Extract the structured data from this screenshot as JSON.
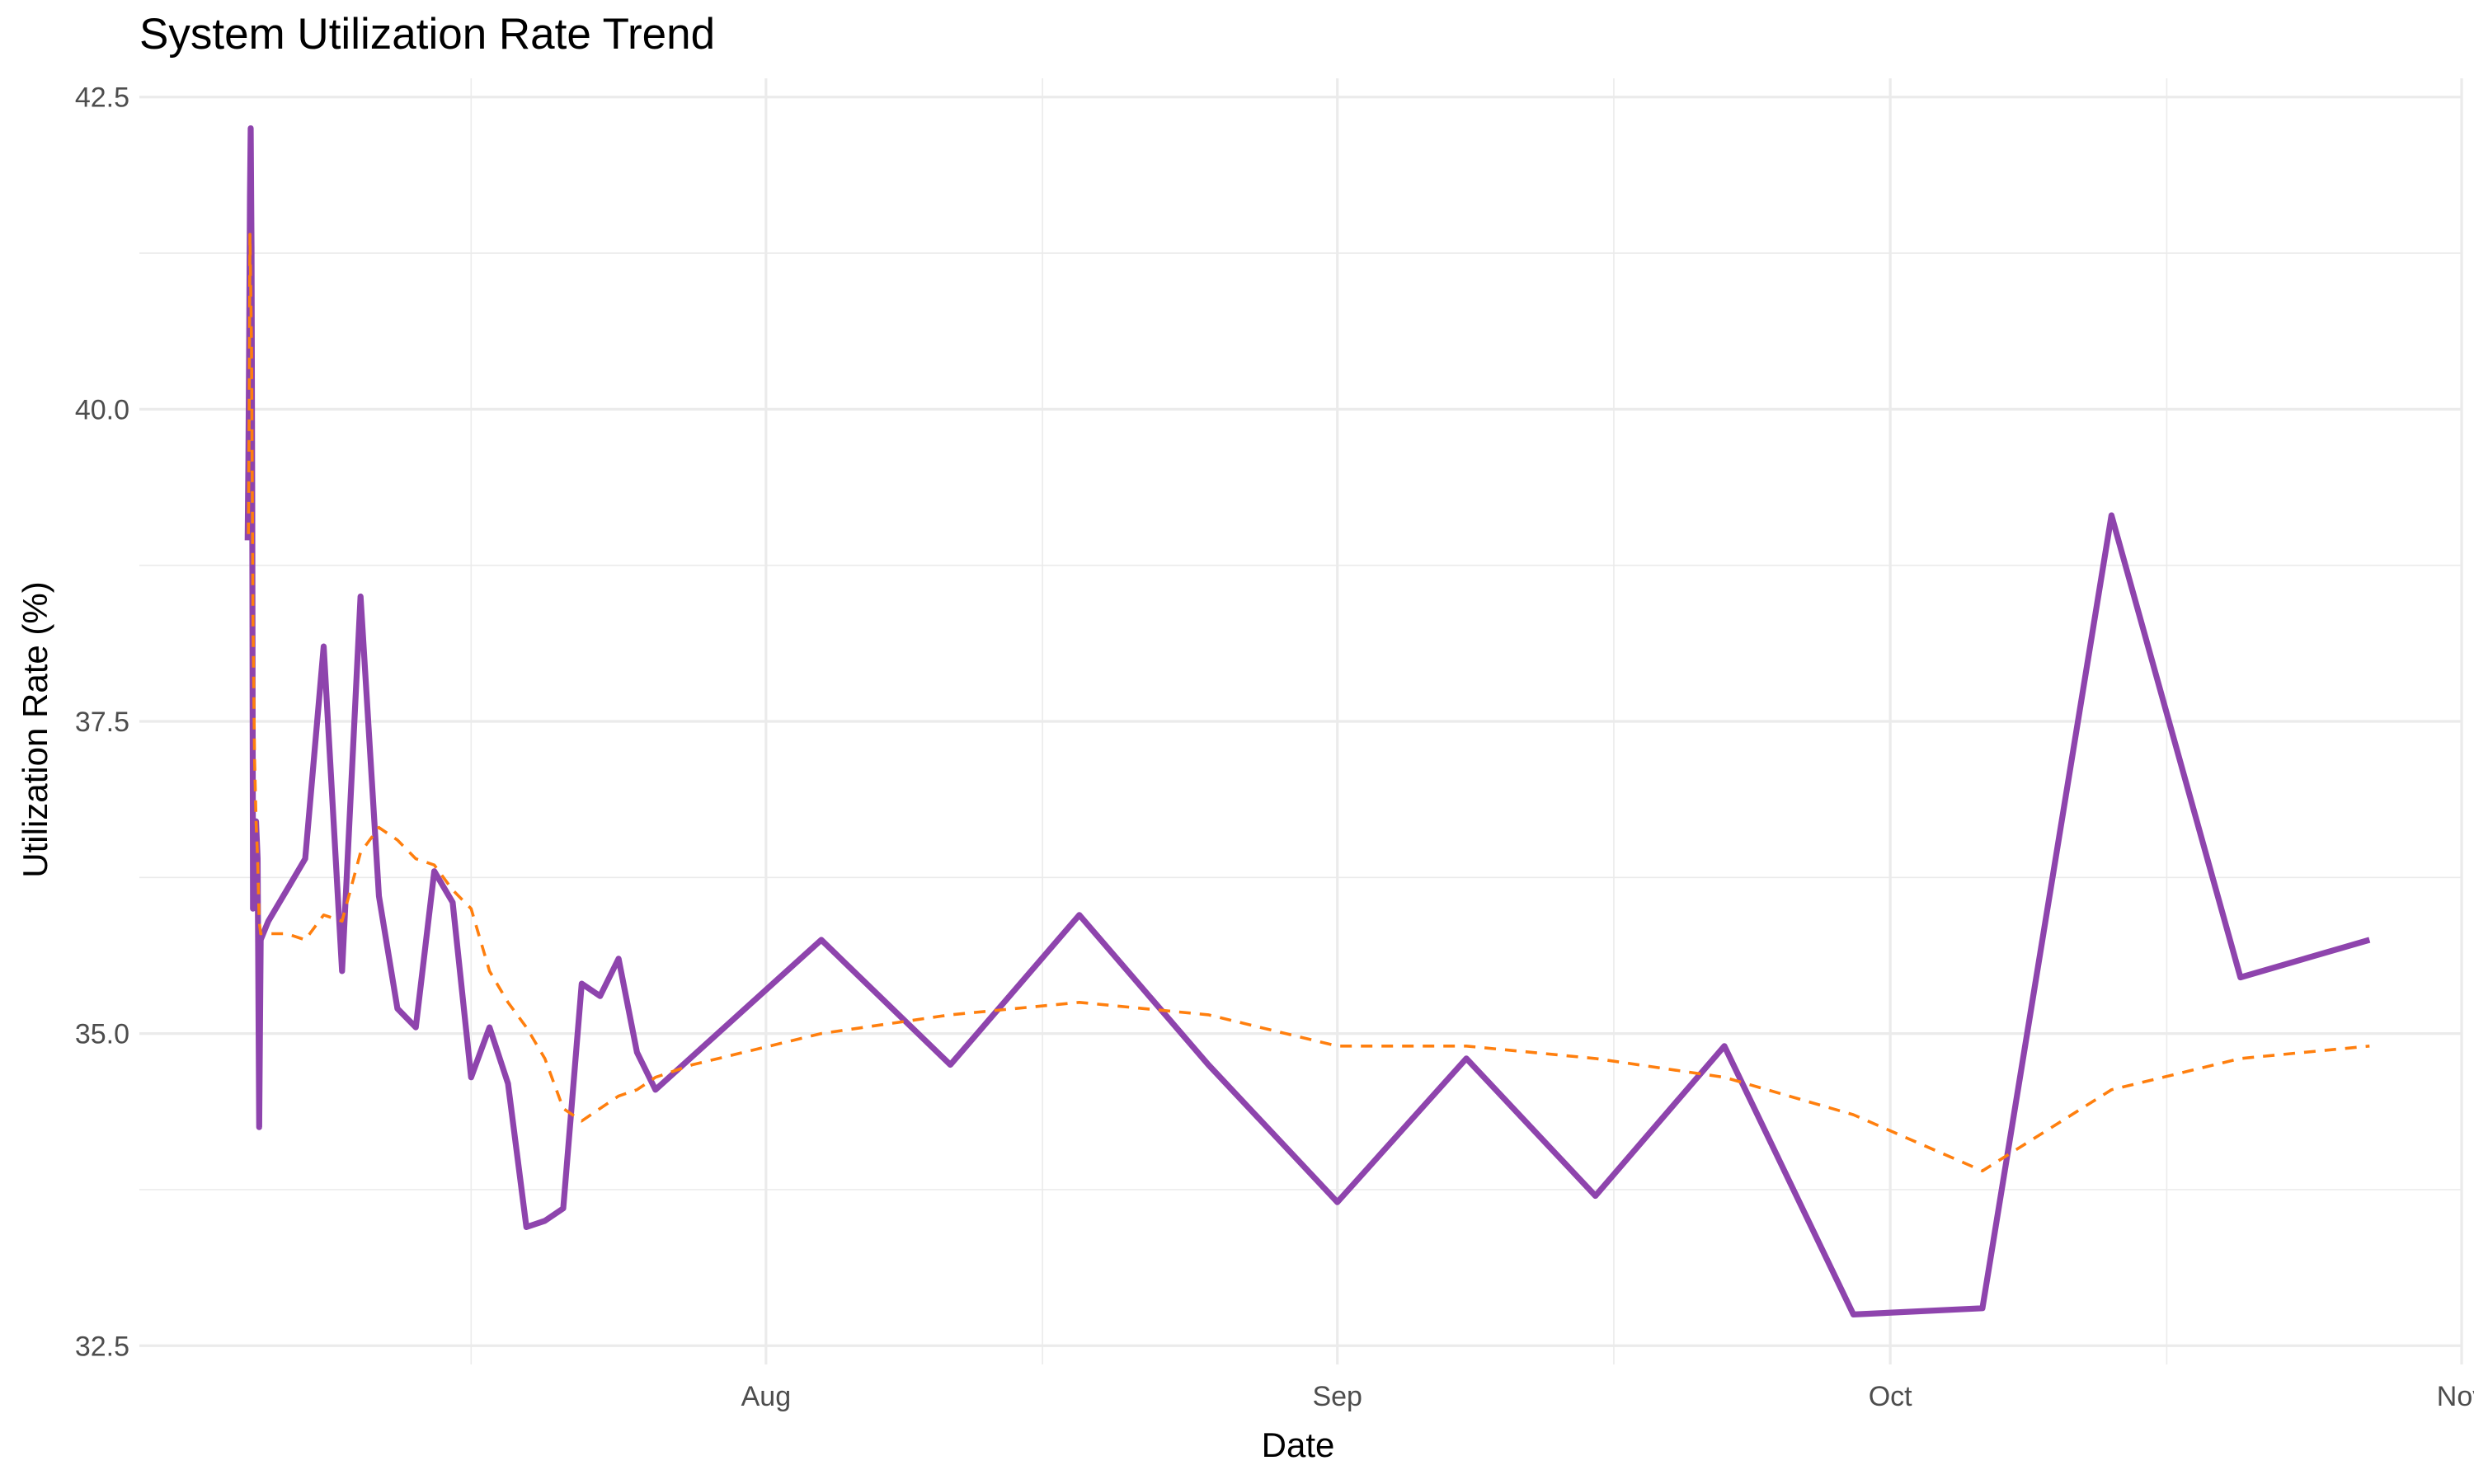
{
  "chart_data": {
    "type": "line",
    "title": "System Utilization Rate Trend",
    "xlabel": "Date",
    "ylabel": "Utilization Rate (%)",
    "x_type": "date",
    "xlim": [
      "2024-06-28",
      "2024-11-01"
    ],
    "ylim": [
      32.35,
      42.65
    ],
    "x_ticks": [
      {
        "date": "2024-08-01",
        "label": "Aug"
      },
      {
        "date": "2024-09-01",
        "label": "Sep"
      },
      {
        "date": "2024-10-01",
        "label": "Oct"
      },
      {
        "date": "2024-11-01",
        "label": "Nov"
      }
    ],
    "x_minor_ticks": [
      "2024-07-16",
      "2024-08-16",
      "2024-08-16",
      "2024-09-16",
      "2024-10-16"
    ],
    "y_ticks": [
      32.5,
      35.0,
      37.5,
      40.0,
      42.5
    ],
    "y_tick_labels": [
      "32.5",
      "35.0",
      "37.5",
      "40.0",
      "42.5"
    ],
    "y_minor_ticks": [
      33.75,
      36.25,
      38.75,
      41.25
    ],
    "grid": true,
    "series": [
      {
        "color": "#8e44ad",
        "style": "solid",
        "points": [
          [
            "2024-07-03 21:00",
            38.95
          ],
          [
            "2024-07-03 22:00",
            39.6
          ],
          [
            "2024-07-03 23:00",
            40.6
          ],
          [
            "2024-07-04 00:00",
            41.7
          ],
          [
            "2024-07-04 01:00",
            42.25
          ],
          [
            "2024-07-04 02:00",
            41.3
          ],
          [
            "2024-07-04 03:00",
            39.2
          ],
          [
            "2024-07-04 04:00",
            36.0
          ],
          [
            "2024-07-04 06:00",
            36.1
          ],
          [
            "2024-07-04 08:00",
            36.7
          ],
          [
            "2024-07-04 10:00",
            36.4
          ],
          [
            "2024-07-04 12:00",
            34.25
          ],
          [
            "2024-07-04 14:00",
            35.75
          ],
          [
            "2024-07-05",
            35.9
          ],
          [
            "2024-07-06",
            36.15
          ],
          [
            "2024-07-07",
            36.4
          ],
          [
            "2024-07-08",
            38.1
          ],
          [
            "2024-07-09",
            35.5
          ],
          [
            "2024-07-10",
            38.5
          ],
          [
            "2024-07-11",
            36.1
          ],
          [
            "2024-07-12",
            35.2
          ],
          [
            "2024-07-13",
            35.05
          ],
          [
            "2024-07-14",
            36.3
          ],
          [
            "2024-07-15",
            36.05
          ],
          [
            "2024-07-16",
            34.65
          ],
          [
            "2024-07-17",
            35.05
          ],
          [
            "2024-07-18",
            34.6
          ],
          [
            "2024-07-19",
            33.45
          ],
          [
            "2024-07-20",
            33.5
          ],
          [
            "2024-07-21",
            33.6
          ],
          [
            "2024-07-22",
            35.4
          ],
          [
            "2024-07-23",
            35.3
          ],
          [
            "2024-07-24",
            35.6
          ],
          [
            "2024-07-25",
            34.85
          ],
          [
            "2024-07-26",
            34.55
          ],
          [
            "2024-08-04",
            35.75
          ],
          [
            "2024-08-11",
            34.75
          ],
          [
            "2024-08-18",
            35.95
          ],
          [
            "2024-08-25",
            34.75
          ],
          [
            "2024-09-01",
            33.65
          ],
          [
            "2024-09-08",
            34.8
          ],
          [
            "2024-09-15",
            33.7
          ],
          [
            "2024-09-22",
            34.9
          ],
          [
            "2024-09-29",
            32.75
          ],
          [
            "2024-10-06",
            32.8
          ],
          [
            "2024-10-13",
            39.15
          ],
          [
            "2024-10-20",
            35.45
          ],
          [
            "2024-10-27",
            35.75
          ]
        ]
      },
      {
        "color": "#ff7f0e",
        "style": "dashed",
        "points": [
          [
            "2024-07-03 22:00",
            39.0
          ],
          [
            "2024-07-03 23:00",
            40.0
          ],
          [
            "2024-07-04 00:00",
            41.4
          ],
          [
            "2024-07-04 02:00",
            40.5
          ],
          [
            "2024-07-04 04:00",
            38.3
          ],
          [
            "2024-07-04 06:00",
            37.2
          ],
          [
            "2024-07-04 08:00",
            36.7
          ],
          [
            "2024-07-04 10:00",
            36.4
          ],
          [
            "2024-07-04 12:00",
            35.9
          ],
          [
            "2024-07-04 14:00",
            35.8
          ],
          [
            "2024-07-05",
            35.8
          ],
          [
            "2024-07-06",
            35.8
          ],
          [
            "2024-07-07",
            35.75
          ],
          [
            "2024-07-08",
            35.95
          ],
          [
            "2024-07-09",
            35.9
          ],
          [
            "2024-07-10",
            36.45
          ],
          [
            "2024-07-11",
            36.65
          ],
          [
            "2024-07-12",
            36.55
          ],
          [
            "2024-07-13",
            36.4
          ],
          [
            "2024-07-14",
            36.35
          ],
          [
            "2024-07-15",
            36.15
          ],
          [
            "2024-07-16",
            36.0
          ],
          [
            "2024-07-17",
            35.5
          ],
          [
            "2024-07-18",
            35.25
          ],
          [
            "2024-07-19",
            35.05
          ],
          [
            "2024-07-20",
            34.8
          ],
          [
            "2024-07-21",
            34.4
          ],
          [
            "2024-07-22",
            34.3
          ],
          [
            "2024-07-23",
            34.4
          ],
          [
            "2024-07-24",
            34.5
          ],
          [
            "2024-07-25",
            34.55
          ],
          [
            "2024-07-26",
            34.65
          ],
          [
            "2024-07-28",
            34.75
          ],
          [
            "2024-08-04",
            35.0
          ],
          [
            "2024-08-11",
            35.15
          ],
          [
            "2024-08-18",
            35.25
          ],
          [
            "2024-08-25",
            35.15
          ],
          [
            "2024-09-01",
            34.9
          ],
          [
            "2024-09-08",
            34.9
          ],
          [
            "2024-09-15",
            34.8
          ],
          [
            "2024-09-22",
            34.65
          ],
          [
            "2024-09-29",
            34.35
          ],
          [
            "2024-10-06",
            33.9
          ],
          [
            "2024-10-13",
            34.55
          ],
          [
            "2024-10-20",
            34.8
          ],
          [
            "2024-10-27",
            34.9
          ]
        ]
      }
    ]
  }
}
